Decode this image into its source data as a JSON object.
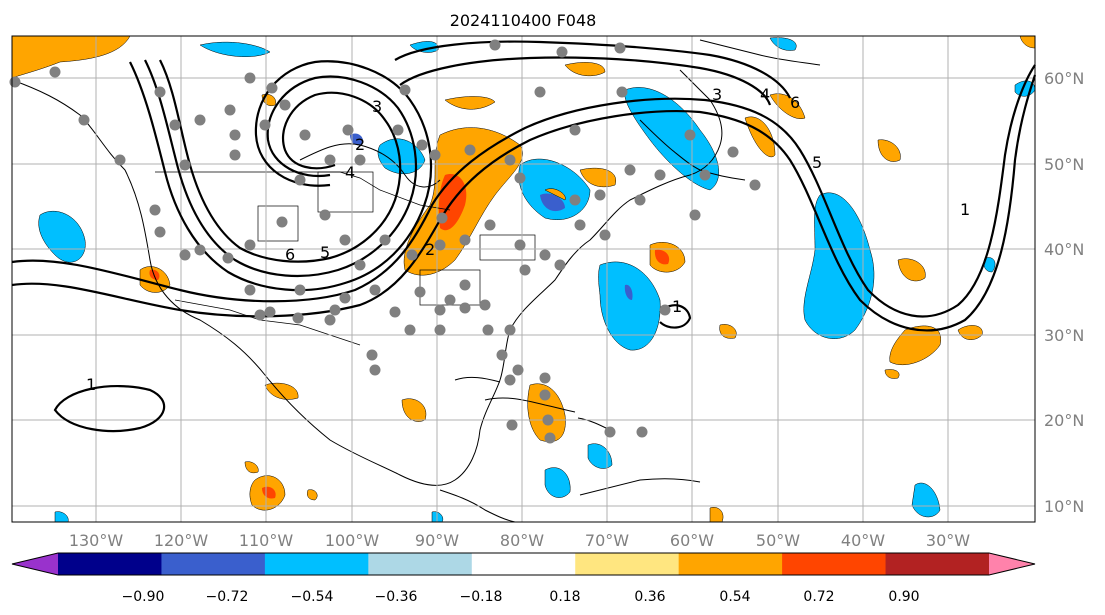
{
  "title": "2024110400 F048",
  "lon_labels": [
    "130°W",
    "120°W",
    "110°W",
    "100°W",
    "90°W",
    "80°W",
    "70°W",
    "60°W",
    "50°W",
    "40°W",
    "30°W"
  ],
  "lat_labels": [
    "60°N",
    "50°N",
    "40°N",
    "30°N",
    "20°N",
    "10°N"
  ],
  "colorbar": {
    "ticks": [
      "−0.90",
      "−0.72",
      "−0.54",
      "−0.36",
      "−0.18",
      "0.18",
      "0.36",
      "0.54",
      "0.72",
      "0.90"
    ],
    "colors": [
      "#9932cc",
      "#00008b",
      "#3a5fcd",
      "#00bfff",
      "#add8e6",
      "#ffffff",
      "#ffe680",
      "#ffa500",
      "#ff4500",
      "#b22222",
      "#ff82ab"
    ]
  },
  "contour_labels": [
    "2",
    "3",
    "4",
    "5",
    "6",
    "1",
    "1",
    "2",
    "3",
    "4",
    "5",
    "6",
    "1"
  ],
  "colors": {
    "shade_blue": "#00bfff",
    "shade_orange": "#ffa500",
    "shade_red": "#ff4500",
    "dots": "#808080"
  }
}
